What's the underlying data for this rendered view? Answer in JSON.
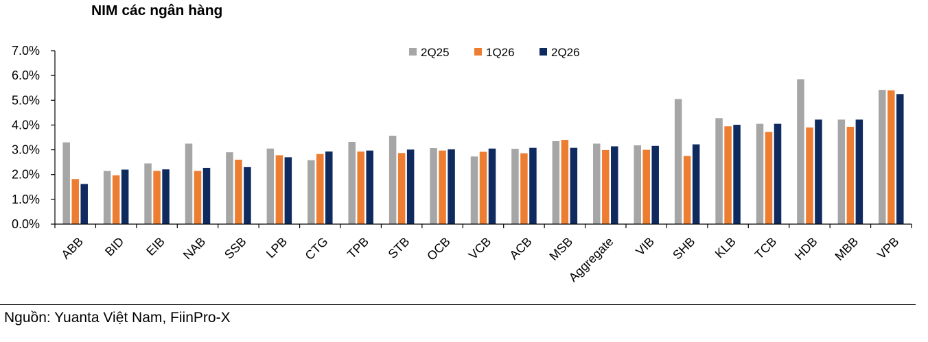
{
  "chart_data": {
    "type": "bar",
    "title": "NIM các ngân hàng",
    "xlabel": "",
    "ylabel": "",
    "ylim": [
      0,
      7
    ],
    "yticks": [
      "0.0%",
      "1.0%",
      "2.0%",
      "3.0%",
      "4.0%",
      "5.0%",
      "6.0%",
      "7.0%"
    ],
    "grid": false,
    "legend": "top-center",
    "categories": [
      "ABB",
      "BID",
      "EIB",
      "NAB",
      "SSB",
      "LPB",
      "CTG",
      "TPB",
      "STB",
      "OCB",
      "VCB",
      "ACB",
      "MSB",
      "Aggregate",
      "VIB",
      "SHB",
      "KLB",
      "TCB",
      "HDB",
      "MBB",
      "VPB"
    ],
    "series": [
      {
        "name": "2Q25",
        "color": "#a6a6a6",
        "values": [
          3.3,
          2.15,
          2.45,
          3.25,
          2.9,
          3.05,
          2.58,
          3.32,
          3.57,
          3.07,
          2.73,
          3.04,
          3.35,
          3.25,
          3.18,
          5.05,
          4.28,
          4.05,
          5.85,
          4.22,
          5.42
        ]
      },
      {
        "name": "1Q26",
        "color": "#ed7d31",
        "values": [
          1.82,
          1.97,
          2.15,
          2.15,
          2.6,
          2.78,
          2.83,
          2.93,
          2.87,
          2.97,
          2.92,
          2.86,
          3.4,
          2.99,
          3.0,
          2.75,
          3.95,
          3.72,
          3.9,
          3.93,
          5.4
        ]
      },
      {
        "name": "2Q26",
        "color": "#0f2a5f",
        "values": [
          1.62,
          2.2,
          2.21,
          2.27,
          2.3,
          2.7,
          2.93,
          2.97,
          3.01,
          3.02,
          3.05,
          3.08,
          3.08,
          3.14,
          3.16,
          3.22,
          4.01,
          4.05,
          4.22,
          4.22,
          5.25
        ]
      }
    ]
  },
  "footer": {
    "source": "Nguồn: Yuanta Việt Nam, FiinPro-X"
  }
}
